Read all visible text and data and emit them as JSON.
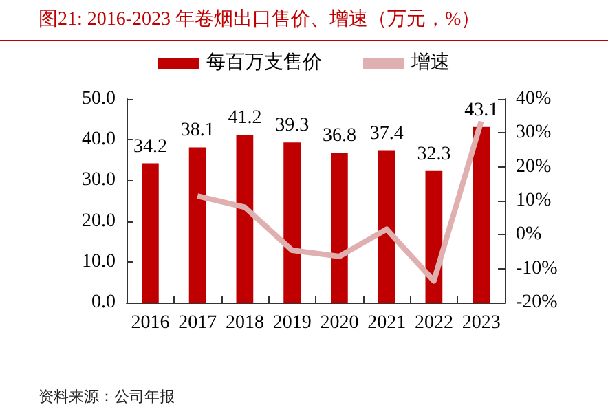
{
  "chart_data": {
    "type": "bar",
    "title": "图21:  2016-2023 年卷烟出口售价、增速（万元，%）",
    "annotations": [
      "资料来源：公司年报"
    ],
    "categories": [
      "2016",
      "2017",
      "2018",
      "2019",
      "2020",
      "2021",
      "2022",
      "2023"
    ],
    "series": [
      {
        "name": "每百万支售价",
        "color": "#c00000",
        "values": [
          34.2,
          38.1,
          41.2,
          39.3,
          36.8,
          37.4,
          32.3,
          43.1
        ],
        "value_labels": [
          "34.2",
          "38.1",
          "41.2",
          "39.3",
          "36.8",
          "37.4",
          "32.3",
          "43.1"
        ]
      },
      {
        "name": "增速",
        "type": "line",
        "axis": "y2",
        "color": "#e0b0b0",
        "values": [
          null,
          11.4,
          8.1,
          -4.6,
          -6.4,
          1.6,
          -13.6,
          33.4
        ]
      }
    ],
    "legend": "top",
    "grid": false,
    "marker": "none",
    "ylim": [
      0,
      50
    ],
    "yticks": [
      {
        "value": 0,
        "label": "0.0"
      },
      {
        "value": 10,
        "label": "10.0"
      },
      {
        "value": 20,
        "label": "20.0"
      },
      {
        "value": 30,
        "label": "30.0"
      },
      {
        "value": 40,
        "label": "40.0"
      },
      {
        "value": 50,
        "label": "50.0"
      }
    ],
    "y2lim": [
      -20,
      40
    ],
    "y2ticks": [
      {
        "value": -20,
        "label": "-20%"
      },
      {
        "value": -10,
        "label": "-10%"
      },
      {
        "value": 0,
        "label": "0%"
      },
      {
        "value": 10,
        "label": "10%"
      },
      {
        "value": 20,
        "label": "20%"
      },
      {
        "value": 30,
        "label": "30%"
      },
      {
        "value": 40,
        "label": "40%"
      }
    ]
  }
}
